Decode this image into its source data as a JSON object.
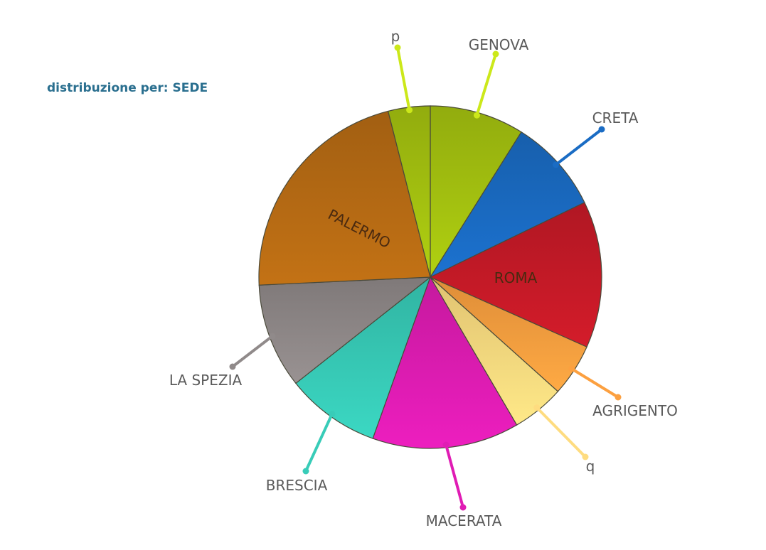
{
  "chart_data": {
    "type": "pie",
    "title": "distribuzione per: SEDE",
    "total_slices": 10,
    "slices": [
      {
        "label": "GENOVA",
        "value": 9,
        "color": "#a6c410",
        "inside": false
      },
      {
        "label": "CRETA",
        "value": 9,
        "color": "#1a6cc4",
        "inside": false
      },
      {
        "label": "ROMA",
        "value": 14,
        "color": "#c81a28",
        "inside": true
      },
      {
        "label": "AGRIGENTO",
        "value": 5,
        "color": "#fca040",
        "inside": false
      },
      {
        "label": "q",
        "value": 5,
        "color": "#fedc80",
        "inside": false
      },
      {
        "label": "MACERATA",
        "value": 14,
        "color": "#e01cb4",
        "inside": false
      },
      {
        "label": "BRESCIA",
        "value": 9,
        "color": "#38ccb8",
        "inside": false
      },
      {
        "label": "LA SPEZIA",
        "value": 10,
        "color": "#908a8a",
        "inside": false
      },
      {
        "label": "PALERMO",
        "value": 22,
        "color": "#b86c14",
        "inside": true
      },
      {
        "label": "p",
        "value": 4,
        "color": "#a6c410",
        "inside": false
      }
    ]
  }
}
